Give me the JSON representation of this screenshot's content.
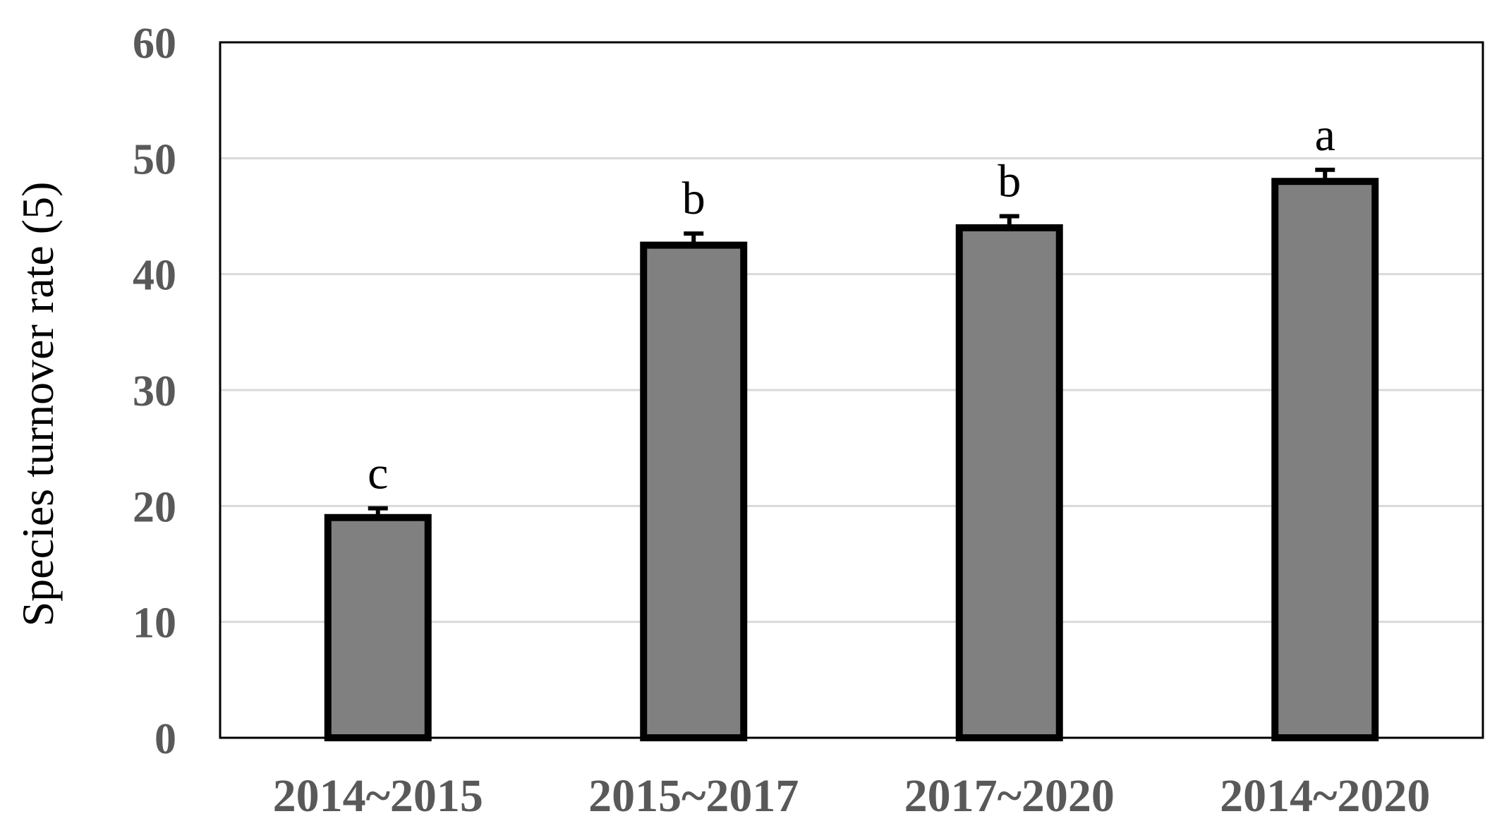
{
  "chart_data": {
    "type": "bar",
    "title": "",
    "xlabel": "",
    "ylabel": "Species turnover rate (5)",
    "ylim": [
      0,
      60
    ],
    "yticks": [
      0,
      10,
      20,
      30,
      40,
      50,
      60
    ],
    "grid": "horizontal",
    "categories": [
      "2014~2015",
      "2015~2017",
      "2017~2020",
      "2014~2020"
    ],
    "values": [
      19,
      42.5,
      44,
      48
    ],
    "errors": [
      0.8,
      1.0,
      1.0,
      1.0
    ],
    "significance_labels": [
      "c",
      "b",
      "b",
      "a"
    ],
    "colors": {
      "bar_fill": "#808080",
      "bar_edge": "#000000",
      "gridline": "#d9d9d9",
      "tick_text": "#595959"
    }
  }
}
